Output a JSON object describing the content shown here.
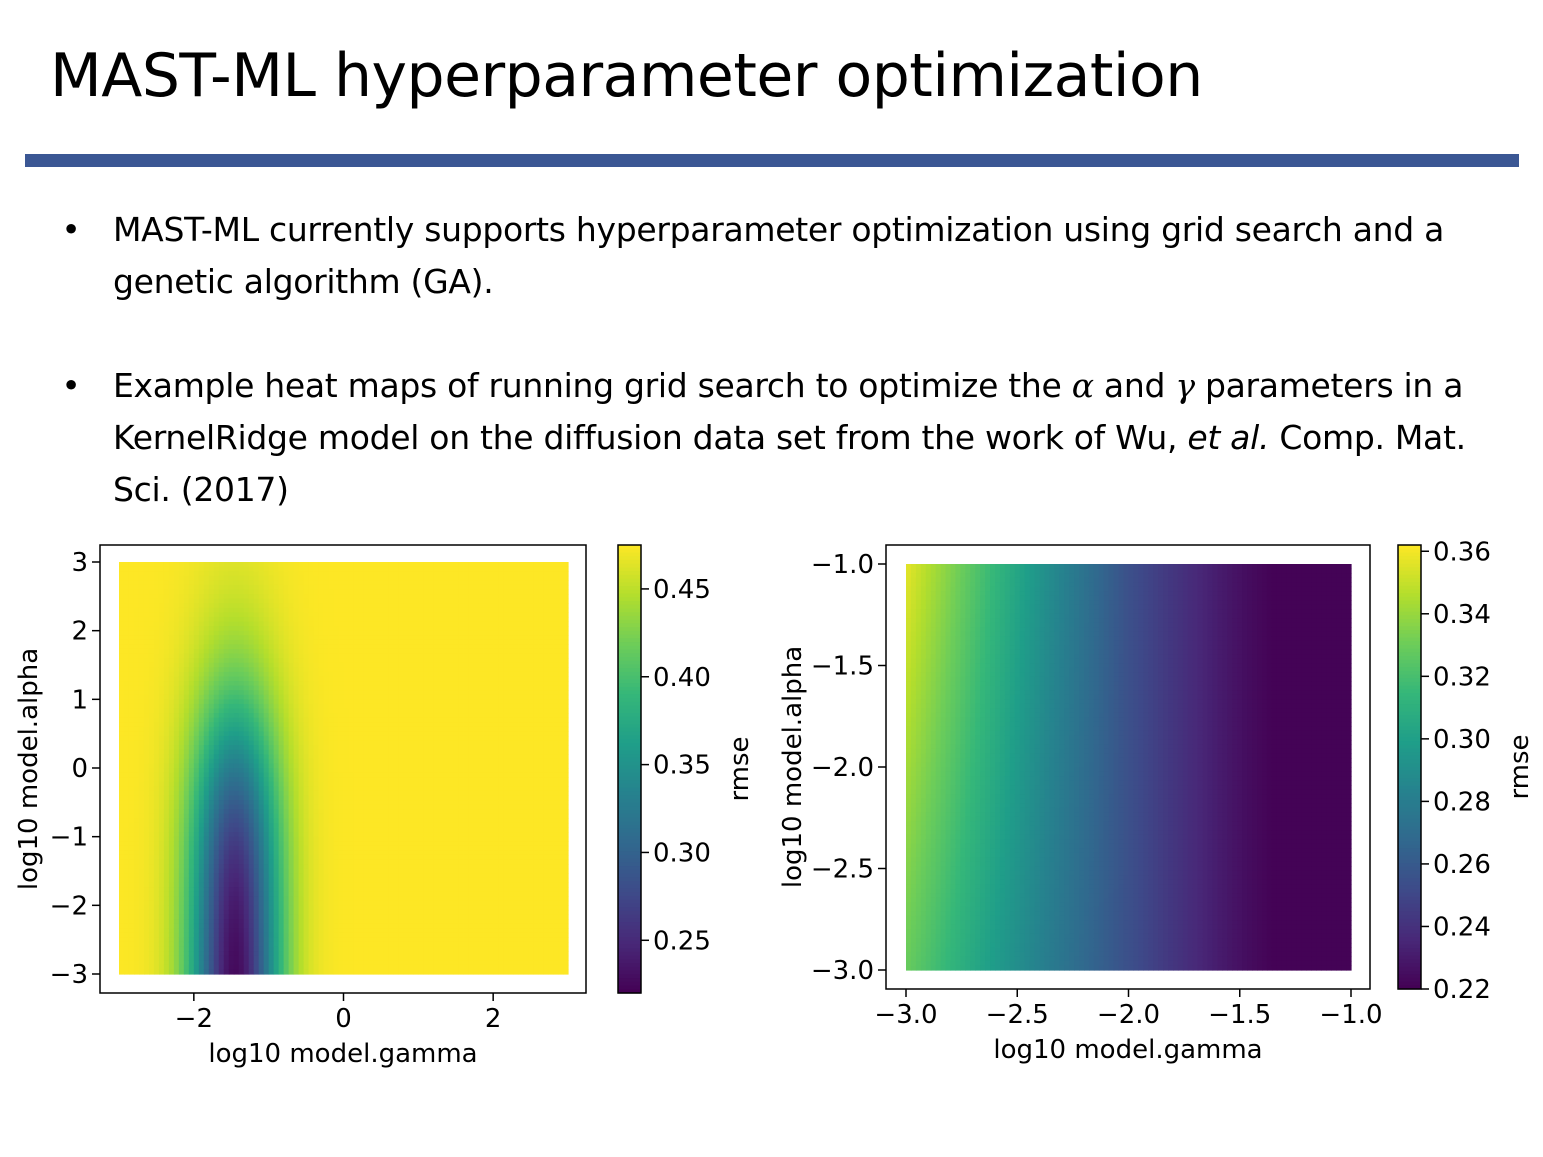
{
  "slide": {
    "title": "MAST-ML hyperparameter optimization",
    "accent_color": "#3b5794",
    "bullet_symbol": "•",
    "bullets": [
      {
        "text": "MAST-ML currently supports hyperparameter optimization using grid search and a genetic algorithm (GA)."
      },
      {
        "part1": "Example heat maps of running grid search to optimize the ",
        "alpha_symbol": "α",
        "part2": " and ",
        "gamma_symbol": "γ",
        "part3": " parameters in a KernelRidge model on the diffusion data set from the work of Wu, ",
        "italic": "et al.",
        "part4": " Comp. Mat. Sci. (2017)"
      }
    ]
  },
  "chart_data": [
    {
      "type": "heatmap",
      "xlabel": "log10 model.gamma",
      "ylabel": "log10 model.alpha",
      "xlim": [
        -3,
        3
      ],
      "ylim": [
        -3,
        3
      ],
      "xticks": [
        -2,
        0,
        2
      ],
      "xtick_labels": [
        "−2",
        "0",
        "2"
      ],
      "yticks": [
        3,
        2,
        1,
        0,
        -1,
        -2,
        -3
      ],
      "ytick_labels": [
        "3",
        "2",
        "1",
        "0",
        "−1",
        "−2",
        "−3"
      ],
      "colorbar_label": "rmse",
      "colorbar_range": [
        0.22,
        0.475
      ],
      "colorbar_ticks": [
        0.45,
        0.4,
        0.35,
        0.3,
        0.25
      ],
      "colorbar_tick_labels": [
        "0.45",
        "0.40",
        "0.35",
        "0.30",
        "0.25"
      ],
      "colormap": "viridis",
      "grid": false,
      "pattern": "minimum rmse ≈ 0.22 near gamma ≈ -1.5 for alpha ≤ -1; rmse ≈ 0.47 for gamma > -0.3 and for large alpha"
    },
    {
      "type": "heatmap",
      "xlabel": "log10 model.gamma",
      "ylabel": "log10 model.alpha",
      "xlim": [
        -3,
        -1
      ],
      "ylim": [
        -3,
        -1
      ],
      "xticks": [
        -3.0,
        -2.5,
        -2.0,
        -1.5,
        -1.0
      ],
      "xtick_labels": [
        "−3.0",
        "−2.5",
        "−2.0",
        "−1.5",
        "−1.0"
      ],
      "yticks": [
        -1.0,
        -1.5,
        -2.0,
        -2.5,
        -3.0
      ],
      "ytick_labels": [
        "−1.0",
        "−1.5",
        "−2.0",
        "−2.5",
        "−3.0"
      ],
      "colorbar_label": "rmse",
      "colorbar_range": [
        0.22,
        0.362
      ],
      "colorbar_ticks": [
        0.36,
        0.34,
        0.32,
        0.3,
        0.28,
        0.26,
        0.24,
        0.22
      ],
      "colorbar_tick_labels": [
        "0.36",
        "0.34",
        "0.32",
        "0.30",
        "0.28",
        "0.26",
        "0.24",
        "0.22"
      ],
      "colormap": "viridis",
      "grid": false,
      "pattern": "rmse ≈ 0.36 at gamma = -3, alpha = -1; ≈ 0.33 at gamma = -3, alpha = -3; decreasing to minimum ≈ 0.22 near gamma ≈ -1.4"
    }
  ]
}
